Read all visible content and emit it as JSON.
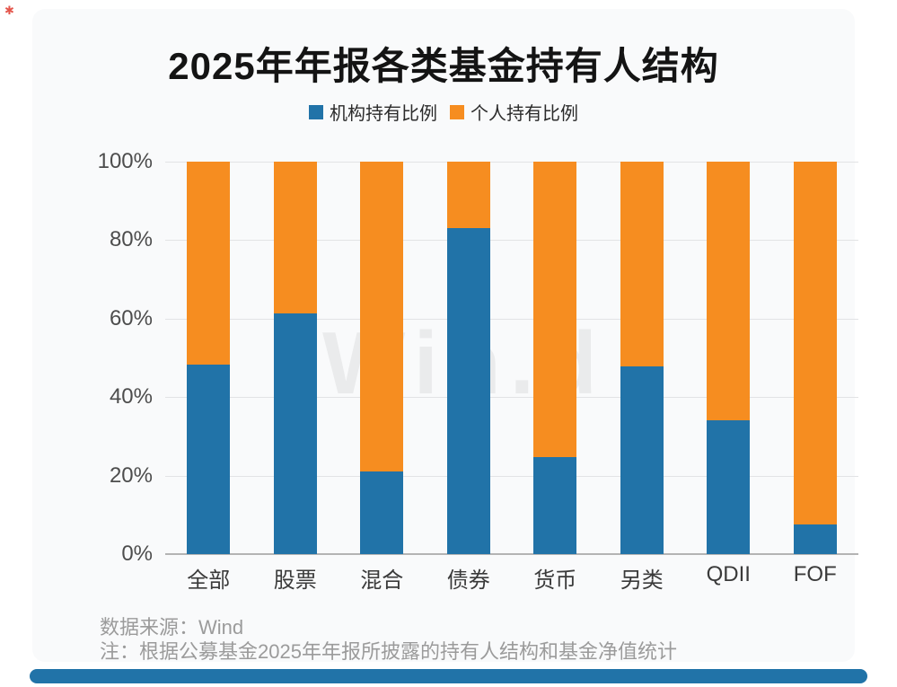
{
  "page": {
    "corner_mark": "✱"
  },
  "title": "2025年年报各类基金持有人结构",
  "legend": [
    {
      "label": "机构持有比例",
      "color": "#2173a8"
    },
    {
      "label": "个人持有比例",
      "color": "#f68d20"
    }
  ],
  "chart_data": {
    "type": "bar",
    "stacked": true,
    "title": "2025年年报各类基金持有人结构",
    "categories": [
      "全部",
      "股票",
      "混合",
      "债券",
      "货币",
      "另类",
      "QDII",
      "FOF"
    ],
    "series": [
      {
        "name": "机构持有比例",
        "color": "#2173a8",
        "values": [
          48.2,
          61.3,
          21.0,
          83.0,
          24.7,
          47.9,
          34.0,
          7.6
        ]
      },
      {
        "name": "个人持有比例",
        "color": "#f68d20",
        "values": [
          51.8,
          38.7,
          79.0,
          17.0,
          75.3,
          52.1,
          66.0,
          92.4
        ]
      }
    ],
    "xlabel": "",
    "ylabel": "",
    "ylim": [
      0,
      100
    ],
    "yticks": [
      "0%",
      "20%",
      "40%",
      "60%",
      "80%",
      "100%"
    ],
    "grid": true,
    "legend_position": "top",
    "watermark": "Win.d"
  },
  "footer": {
    "source": "数据来源：Wind",
    "note": "注：根据公募基金2025年年报所披露的持有人结构和基金净值统计"
  }
}
